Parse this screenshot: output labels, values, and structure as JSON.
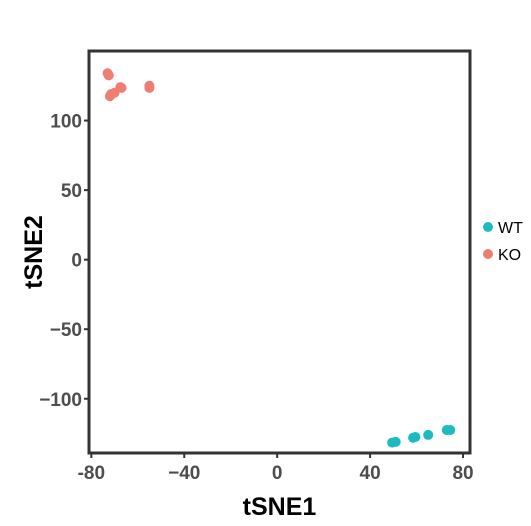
{
  "chart_data": {
    "type": "scatter",
    "title": "",
    "xlabel": "tSNE1",
    "ylabel": "tSNE2",
    "xlim": [
      -81,
      83
    ],
    "ylim": [
      -139,
      150
    ],
    "xticks": [
      -80,
      -40,
      0,
      40,
      80
    ],
    "yticks": [
      100,
      50,
      0,
      -50,
      -100
    ],
    "xtick_labels": [
      "-80",
      "−40",
      "0",
      "40",
      "80"
    ],
    "ytick_labels": [
      "100",
      "50",
      "0",
      "−50",
      "−100"
    ],
    "grid": false,
    "legend_position": "right",
    "series": [
      {
        "name": "WT",
        "color": "#1bbcc1",
        "points": [
          {
            "x": 49.5,
            "y": -131.5
          },
          {
            "x": 51.0,
            "y": -131.0
          },
          {
            "x": 58.5,
            "y": -128.0
          },
          {
            "x": 59.5,
            "y": -127.5
          },
          {
            "x": 65.0,
            "y": -126.0
          },
          {
            "x": 73.0,
            "y": -122.5
          },
          {
            "x": 74.5,
            "y": -122.5
          }
        ]
      },
      {
        "name": "KO",
        "color": "#f07d72",
        "points": [
          {
            "x": -73.0,
            "y": 134.0
          },
          {
            "x": -72.5,
            "y": 132.5
          },
          {
            "x": -71.5,
            "y": 119.0
          },
          {
            "x": -72.0,
            "y": 117.5
          },
          {
            "x": -70.0,
            "y": 120.0
          },
          {
            "x": -67.5,
            "y": 124.0
          },
          {
            "x": -67.0,
            "y": 123.5
          },
          {
            "x": -55.0,
            "y": 125.0
          },
          {
            "x": -55.0,
            "y": 123.5
          }
        ]
      }
    ]
  }
}
